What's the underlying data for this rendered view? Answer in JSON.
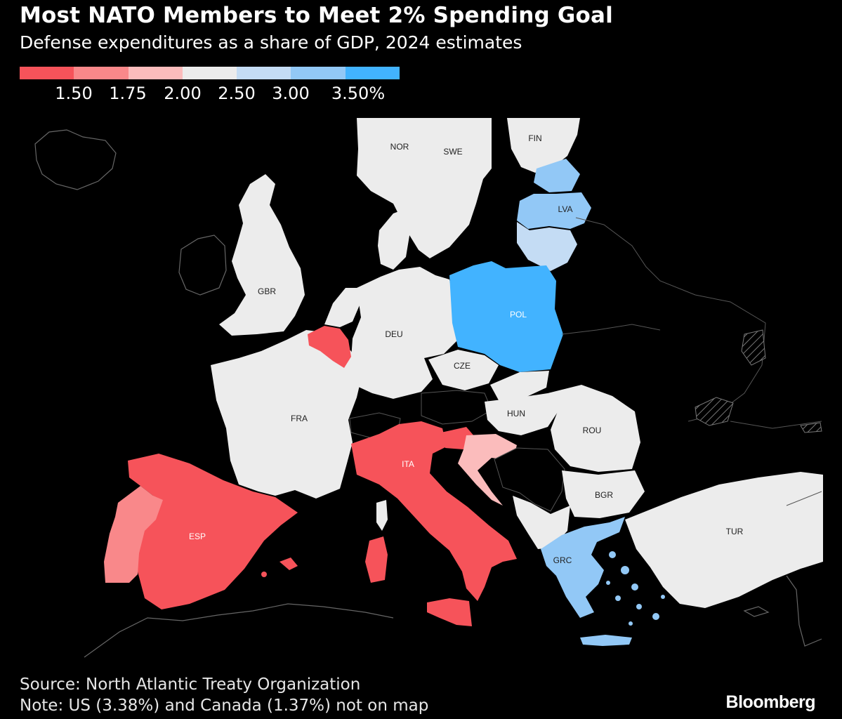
{
  "title": "Most NATO Members to Meet 2% Spending Goal",
  "subtitle": "Defense expenditures as a share of GDP, 2024 estimates",
  "legend": {
    "colors": [
      "#f6535a",
      "#f9888a",
      "#fbbcbc",
      "#ececec",
      "#c4dcf4",
      "#92c8f6",
      "#42b3ff"
    ],
    "ticks": [
      "1.50",
      "1.75",
      "2.00",
      "2.50",
      "3.00",
      "3.50%"
    ]
  },
  "map": {
    "labels": {
      "NOR": "NOR",
      "SWE": "SWE",
      "FIN": "FIN",
      "LVA": "LVA",
      "GBR": "GBR",
      "POL": "POL",
      "DEU": "DEU",
      "CZE": "CZE",
      "FRA": "FRA",
      "HUN": "HUN",
      "ROU": "ROU",
      "ITA": "ITA",
      "ESP": "ESP",
      "BGR": "BGR",
      "GRC": "GRC",
      "TUR": "TUR"
    },
    "colors": {
      "land_default": "#ececec",
      "red": "#f6535a",
      "light_red": "#f9888a",
      "pink": "#fbbcbc",
      "light_blue": "#c4dcf4",
      "mid_blue": "#92c8f6",
      "blue": "#42b3ff",
      "non_member": "#000000",
      "border": "#555555"
    }
  },
  "source": "Source: North Atlantic Treaty Organization",
  "note": "Note: US (3.38%) and Canada (1.37%) not on map",
  "brand": "Bloomberg"
}
